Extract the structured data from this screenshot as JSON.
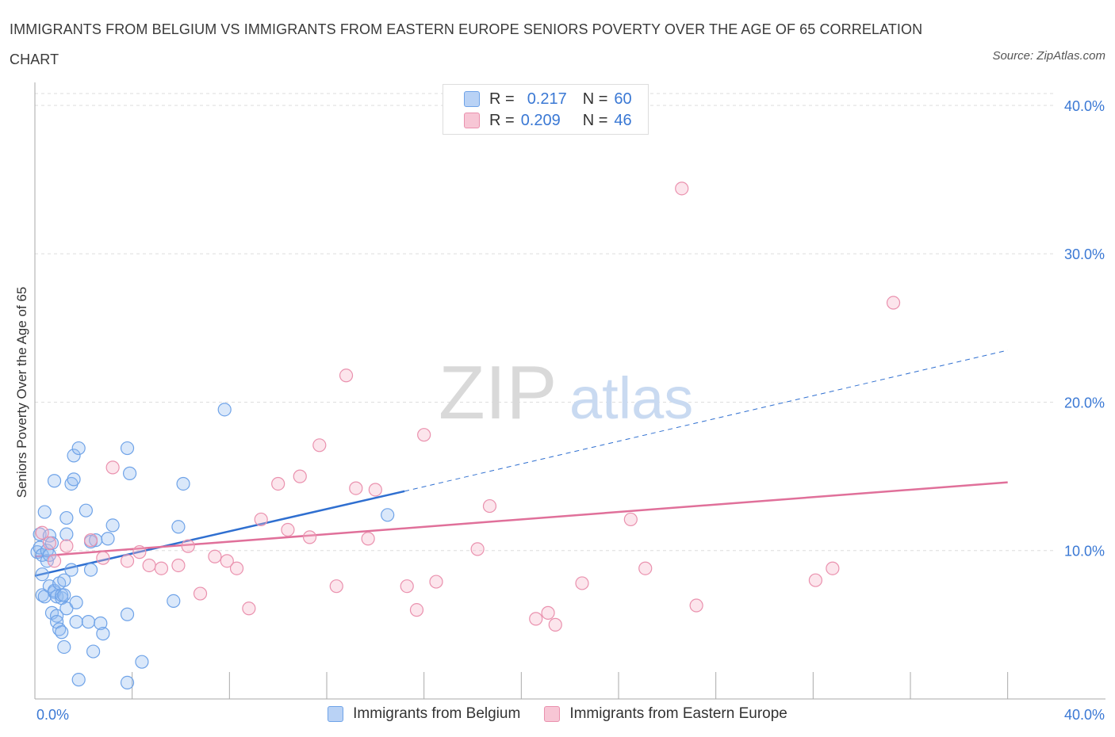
{
  "header": {
    "title": "IMMIGRANTS FROM BELGIUM VS IMMIGRANTS FROM EASTERN EUROPE SENIORS POVERTY OVER THE AGE OF 65 CORRELATION CHART",
    "source": "Source: ZipAtlas.com"
  },
  "watermark": {
    "zip": "ZIP",
    "atlas": "atlas"
  },
  "legend": {
    "r_label": "R =",
    "n_label": "N =",
    "items": [
      {
        "r": "0.217",
        "n": "60",
        "color": "#6fa3e8",
        "fill": "#b9d2f5"
      },
      {
        "r": "0.209",
        "n": "46",
        "color": "#ea91ae",
        "fill": "#f7c6d5"
      }
    ]
  },
  "colors": {
    "blue_stroke": "#6fa3e8",
    "blue_fill": "rgba(150,190,240,0.35)",
    "blue_line": "#2f6fd0",
    "pink_stroke": "#ea91ae",
    "pink_fill": "rgba(245,180,200,0.35)",
    "pink_line": "#e0709a",
    "tick_label": "#3a78d4",
    "grid": "#dedede"
  },
  "chart_data": {
    "type": "scatter",
    "title": "IMMIGRANTS FROM BELGIUM VS IMMIGRANTS FROM EASTERN EUROPE SENIORS POVERTY OVER THE AGE OF 65 CORRELATION CHART",
    "xlabel": "",
    "ylabel": "Seniors Poverty Over the Age of 65",
    "xlim": [
      0,
      42
    ],
    "ylim": [
      0,
      40.8
    ],
    "x_tick_labels": [
      "0.0%",
      "40.0%"
    ],
    "y_ticks": [
      10,
      20,
      30,
      40
    ],
    "y_tick_labels": [
      "10.0%",
      "20.0%",
      "30.0%",
      "40.0%"
    ],
    "grid": true,
    "legend_position": "top-center",
    "series": [
      {
        "name": "Immigrants from Belgium",
        "points": [
          [
            0.1,
            9.9
          ],
          [
            0.2,
            11.1
          ],
          [
            0.2,
            10.2
          ],
          [
            0.3,
            9.7
          ],
          [
            0.3,
            8.4
          ],
          [
            0.3,
            7.0
          ],
          [
            0.4,
            12.6
          ],
          [
            0.4,
            6.9
          ],
          [
            0.5,
            9.3
          ],
          [
            0.5,
            10.0
          ],
          [
            0.6,
            11.0
          ],
          [
            0.6,
            9.7
          ],
          [
            0.6,
            7.6
          ],
          [
            0.7,
            10.5
          ],
          [
            0.7,
            5.8
          ],
          [
            0.8,
            7.2
          ],
          [
            0.8,
            7.3
          ],
          [
            0.8,
            14.7
          ],
          [
            0.9,
            5.6
          ],
          [
            0.9,
            5.2
          ],
          [
            0.9,
            6.9
          ],
          [
            1.0,
            4.7
          ],
          [
            1.0,
            7.8
          ],
          [
            1.1,
            6.8
          ],
          [
            1.1,
            7.0
          ],
          [
            1.1,
            4.5
          ],
          [
            1.2,
            7.0
          ],
          [
            1.2,
            8.0
          ],
          [
            1.2,
            3.5
          ],
          [
            1.3,
            12.2
          ],
          [
            1.3,
            11.1
          ],
          [
            1.3,
            6.1
          ],
          [
            1.5,
            14.5
          ],
          [
            1.5,
            8.7
          ],
          [
            1.6,
            14.8
          ],
          [
            1.6,
            16.4
          ],
          [
            1.7,
            6.5
          ],
          [
            1.7,
            5.2
          ],
          [
            1.8,
            16.9
          ],
          [
            1.8,
            1.3
          ],
          [
            2.1,
            12.7
          ],
          [
            2.2,
            5.2
          ],
          [
            2.3,
            10.6
          ],
          [
            2.3,
            8.7
          ],
          [
            2.4,
            3.2
          ],
          [
            2.5,
            10.7
          ],
          [
            2.7,
            5.1
          ],
          [
            2.8,
            4.4
          ],
          [
            3.0,
            10.8
          ],
          [
            3.2,
            11.7
          ],
          [
            3.8,
            5.7
          ],
          [
            3.8,
            16.9
          ],
          [
            3.8,
            1.1
          ],
          [
            3.9,
            15.2
          ],
          [
            4.4,
            2.5
          ],
          [
            5.7,
            6.6
          ],
          [
            5.9,
            11.6
          ],
          [
            6.1,
            14.5
          ],
          [
            7.8,
            19.5
          ],
          [
            14.5,
            12.4
          ]
        ],
        "trend": {
          "x": [
            0.0,
            15.2
          ],
          "y": [
            8.3,
            14.0
          ]
        },
        "trend_extension": {
          "x": [
            15.2,
            40.0
          ],
          "y": [
            14.0,
            23.5
          ]
        }
      },
      {
        "name": "Immigrants from Eastern Europe",
        "points": [
          [
            0.3,
            11.2
          ],
          [
            0.6,
            10.5
          ],
          [
            0.8,
            9.3
          ],
          [
            1.3,
            10.3
          ],
          [
            2.3,
            10.7
          ],
          [
            2.8,
            9.5
          ],
          [
            3.2,
            15.6
          ],
          [
            3.8,
            9.3
          ],
          [
            4.3,
            9.9
          ],
          [
            4.7,
            9.0
          ],
          [
            5.2,
            8.8
          ],
          [
            5.9,
            9.0
          ],
          [
            6.3,
            10.3
          ],
          [
            6.8,
            7.1
          ],
          [
            7.4,
            9.6
          ],
          [
            7.9,
            9.3
          ],
          [
            8.3,
            8.8
          ],
          [
            8.8,
            6.1
          ],
          [
            9.3,
            12.1
          ],
          [
            10.0,
            14.5
          ],
          [
            10.4,
            11.4
          ],
          [
            10.9,
            15.0
          ],
          [
            11.3,
            10.9
          ],
          [
            11.7,
            17.1
          ],
          [
            12.4,
            7.6
          ],
          [
            12.8,
            21.8
          ],
          [
            13.2,
            14.2
          ],
          [
            13.7,
            10.8
          ],
          [
            14.0,
            14.1
          ],
          [
            15.3,
            7.6
          ],
          [
            15.7,
            6.0
          ],
          [
            16.0,
            17.8
          ],
          [
            16.5,
            7.9
          ],
          [
            18.2,
            10.1
          ],
          [
            18.7,
            13.0
          ],
          [
            20.6,
            5.4
          ],
          [
            21.1,
            5.8
          ],
          [
            21.4,
            5.0
          ],
          [
            22.5,
            7.8
          ],
          [
            24.5,
            12.1
          ],
          [
            25.1,
            8.8
          ],
          [
            26.6,
            34.4
          ],
          [
            27.2,
            6.3
          ],
          [
            32.1,
            8.0
          ],
          [
            32.8,
            8.8
          ],
          [
            35.3,
            26.7
          ]
        ],
        "trend": {
          "x": [
            0.0,
            40.0
          ],
          "y": [
            9.6,
            14.6
          ]
        }
      }
    ]
  },
  "bottom_legend": [
    "Immigrants from Belgium",
    "Immigrants from Eastern Europe"
  ]
}
